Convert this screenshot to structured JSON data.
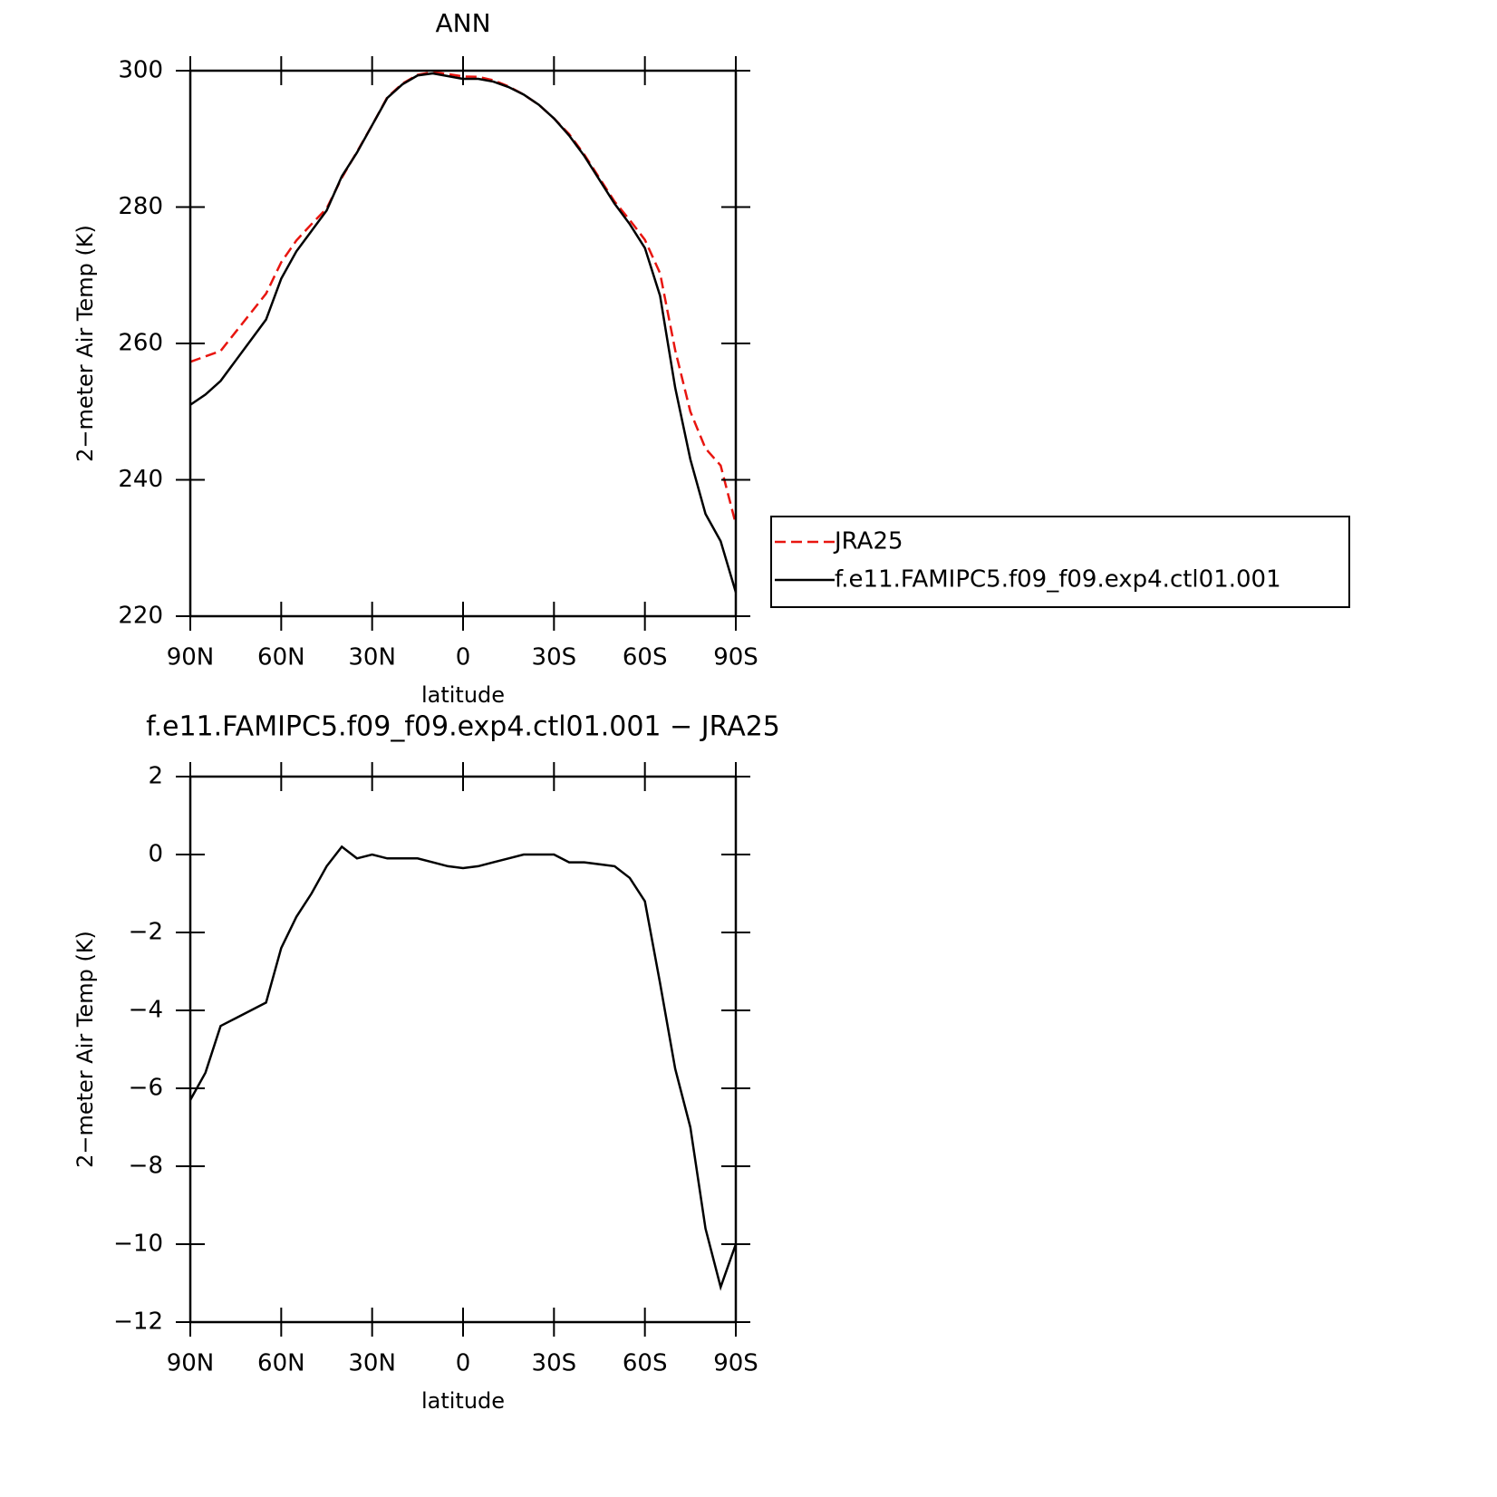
{
  "chart_data": [
    {
      "type": "line",
      "title": "ANN",
      "xlabel": "latitude",
      "ylabel": "2−meter Air Temp (K)",
      "x": [
        90,
        85,
        80,
        75,
        70,
        65,
        60,
        55,
        50,
        45,
        40,
        35,
        30,
        25,
        20,
        15,
        10,
        5,
        0,
        -5,
        -10,
        -15,
        -20,
        -25,
        -30,
        -35,
        -40,
        -45,
        -50,
        -55,
        -60,
        -65,
        -70,
        -75,
        -80,
        -85,
        -90
      ],
      "xlim": [
        90,
        -90
      ],
      "xticks": [
        {
          "value": 90,
          "label": "90N"
        },
        {
          "value": 60,
          "label": "60N"
        },
        {
          "value": 30,
          "label": "30N"
        },
        0,
        {
          "value": -30,
          "label": "30S"
        },
        {
          "value": -60,
          "label": "60S"
        },
        {
          "value": -90,
          "label": "90S"
        }
      ],
      "ylim": [
        220,
        300
      ],
      "yticks": [
        220,
        240,
        260,
        280,
        300
      ],
      "legend": "right",
      "series": [
        {
          "name": "JRA25",
          "color": "#e8150f",
          "dash": "dashed",
          "values": [
            257.3,
            258.1,
            258.9,
            261.7,
            264.5,
            267.3,
            271.9,
            275.1,
            277.5,
            279.8,
            284.3,
            288.1,
            292,
            296.1,
            298.1,
            299.4,
            299.8,
            299.5,
            299.15,
            299.1,
            298.6,
            297.7,
            296.5,
            295,
            293,
            290.7,
            287.7,
            284.25,
            280.8,
            278.1,
            275.2,
            270.3,
            259,
            250,
            244.6,
            242.1,
            233.5
          ]
        },
        {
          "name": "f.e11.FAMIPC5.f09_f09.exp4.ctl01.001",
          "color": "#000000",
          "dash": "solid",
          "values": [
            251,
            252.5,
            254.5,
            257.5,
            260.5,
            263.5,
            269.5,
            273.5,
            276.5,
            279.5,
            284.5,
            288,
            292,
            296,
            298,
            299.3,
            299.6,
            299.2,
            298.8,
            298.8,
            298.4,
            297.6,
            296.5,
            295,
            293,
            290.5,
            287.5,
            284,
            280.5,
            277.5,
            274,
            267,
            253.5,
            243,
            235,
            231,
            223.5
          ]
        }
      ]
    },
    {
      "type": "line",
      "title": "f.e11.FAMIPC5.f09_f09.exp4.ctl01.001 − JRA25",
      "xlabel": "latitude",
      "ylabel": "2−meter Air Temp (K)",
      "x": [
        90,
        85,
        80,
        75,
        70,
        65,
        60,
        55,
        50,
        45,
        40,
        35,
        30,
        25,
        20,
        15,
        10,
        5,
        0,
        -5,
        -10,
        -15,
        -20,
        -25,
        -30,
        -35,
        -40,
        -45,
        -50,
        -55,
        -60,
        -65,
        -70,
        -75,
        -80,
        -85,
        -90
      ],
      "xlim": [
        90,
        -90
      ],
      "xticks": [
        {
          "value": 90,
          "label": "90N"
        },
        {
          "value": 60,
          "label": "60N"
        },
        {
          "value": 30,
          "label": "30N"
        },
        0,
        {
          "value": -30,
          "label": "30S"
        },
        {
          "value": -60,
          "label": "60S"
        },
        {
          "value": -90,
          "label": "90S"
        }
      ],
      "ylim": [
        -12,
        2
      ],
      "yticks": [
        -12,
        -10,
        -8,
        -6,
        -4,
        -2,
        0,
        2
      ],
      "series": [
        {
          "color": "#000000",
          "dash": "solid",
          "values": [
            -6.3,
            -5.6,
            -4.4,
            -4.2,
            -4.0,
            -3.8,
            -2.4,
            -1.6,
            -1.0,
            -0.3,
            0.2,
            -0.1,
            0,
            -0.1,
            -0.1,
            -0.1,
            -0.2,
            -0.3,
            -0.35,
            -0.3,
            -0.2,
            -0.1,
            0,
            0,
            0,
            -0.2,
            -0.2,
            -0.25,
            -0.3,
            -0.6,
            -1.2,
            -3.3,
            -5.5,
            -7.0,
            -9.6,
            -11.1,
            -10.0
          ]
        }
      ]
    }
  ]
}
